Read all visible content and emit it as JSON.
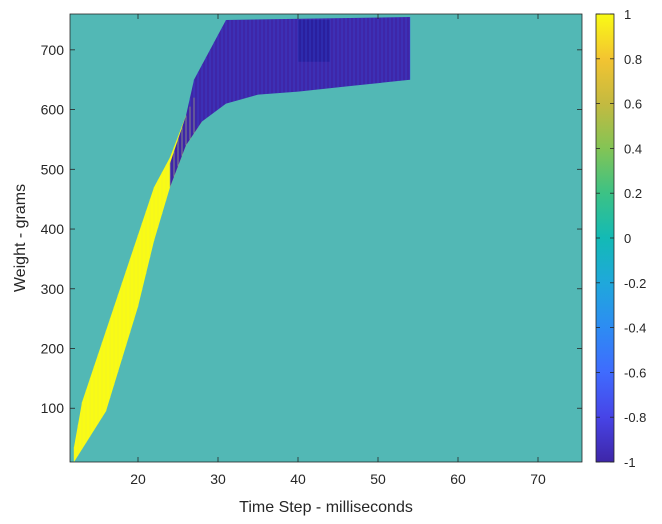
{
  "chart_data": {
    "type": "heatmap",
    "title": "",
    "xlabel": "Time Step - milliseconds",
    "ylabel": "Weight - grams",
    "xlim": [
      11.5,
      75.5
    ],
    "ylim": [
      10,
      760
    ],
    "xticks": [
      20,
      30,
      40,
      50,
      60,
      70
    ],
    "yticks": [
      100,
      200,
      300,
      400,
      500,
      600,
      700
    ],
    "background_value": 0,
    "colormap": "parula",
    "colorbar": {
      "range": [
        -1,
        1
      ],
      "ticks": [
        "1",
        "0.8",
        "0.6",
        "0.4",
        "0.2",
        "0",
        "-0.2",
        "-0.4",
        "-0.6",
        "-0.8",
        "-1"
      ],
      "stops": [
        "#3e26a8",
        "#4744e7",
        "#3f6bfe",
        "#2d8cf3",
        "#1fa8db",
        "#13bab5",
        "#3cc285",
        "#83c455",
        "#c4ba40",
        "#f3c431",
        "#f9fb15"
      ]
    },
    "regions": [
      {
        "value": 1,
        "label": "positive band",
        "lower": [
          [
            12,
            10
          ],
          [
            16,
            95
          ],
          [
            20,
            270
          ],
          [
            22,
            380
          ],
          [
            24,
            470
          ],
          [
            26,
            540
          ],
          [
            28,
            580
          ]
        ],
        "upper": [
          [
            12,
            35
          ],
          [
            13,
            110
          ],
          [
            15,
            190
          ],
          [
            17,
            270
          ],
          [
            19,
            350
          ],
          [
            21,
            430
          ],
          [
            22,
            470
          ],
          [
            24,
            520
          ],
          [
            26,
            590
          ],
          [
            27,
            620
          ]
        ]
      },
      {
        "value": -1,
        "label": "negative band",
        "upper": [
          [
            24,
            510
          ],
          [
            26,
            590
          ],
          [
            27,
            650
          ],
          [
            29,
            700
          ],
          [
            31,
            750
          ],
          [
            54,
            755
          ]
        ],
        "lower": [
          [
            24,
            470
          ],
          [
            26,
            540
          ],
          [
            28,
            580
          ],
          [
            31,
            610
          ],
          [
            35,
            625
          ],
          [
            40,
            630
          ],
          [
            47,
            640
          ],
          [
            54,
            650
          ]
        ]
      },
      {
        "value": -1,
        "label": "saturated block",
        "upper": [
          [
            40,
            750
          ],
          [
            44,
            750
          ]
        ],
        "lower": [
          [
            40,
            680
          ],
          [
            44,
            680
          ]
        ]
      }
    ]
  }
}
